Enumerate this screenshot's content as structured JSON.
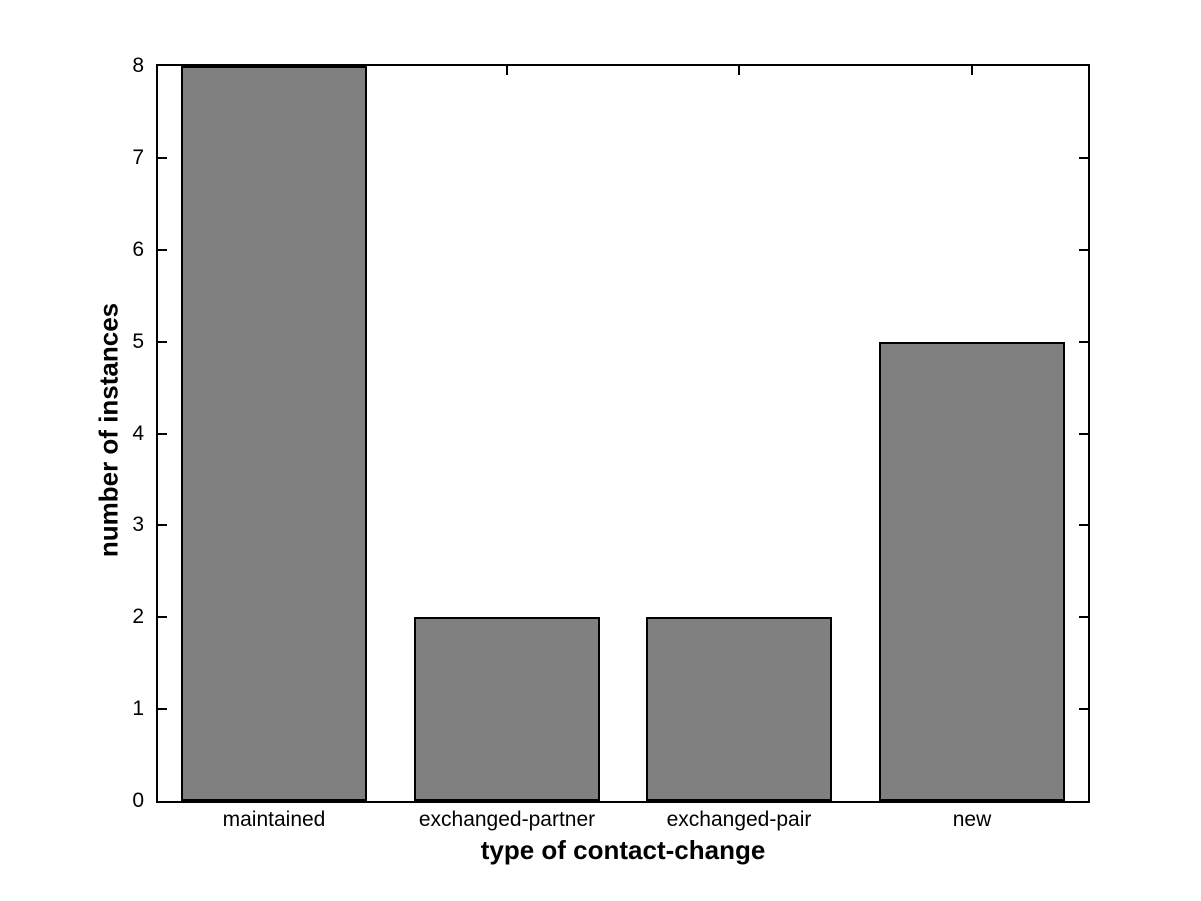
{
  "chart_data": {
    "type": "bar",
    "categories": [
      "maintained",
      "exchanged-partner",
      "exchanged-pair",
      "new"
    ],
    "values": [
      8,
      2,
      2,
      5
    ],
    "title": "",
    "xlabel": "type of contact-change",
    "ylabel": "number of instances",
    "ylim": [
      0,
      8
    ],
    "yticks": [
      0,
      1,
      2,
      3,
      4,
      5,
      6,
      7,
      8
    ],
    "bar_width_fraction": 0.8,
    "bar_fill_color": "#808080",
    "bar_edge_color": "#000000",
    "axis_color": "#000000",
    "background_color": "#ffffff",
    "grid": "off",
    "legend": "none",
    "tick_direction": "in",
    "box": "on"
  }
}
